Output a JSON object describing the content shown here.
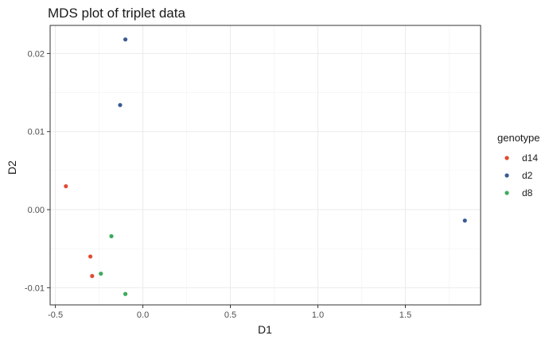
{
  "chart_data": {
    "type": "scatter",
    "title": "MDS plot of triplet data",
    "xlabel": "D1",
    "ylabel": "D2",
    "xlim": [
      -0.53,
      1.93
    ],
    "ylim": [
      -0.0122,
      0.0236
    ],
    "x_ticks": [
      -0.5,
      0.0,
      0.5,
      1.0,
      1.5
    ],
    "x_tick_labels": [
      "-0.5",
      "0.0",
      "0.5",
      "1.0",
      "1.5"
    ],
    "y_ticks": [
      -0.01,
      0.0,
      0.01,
      0.02
    ],
    "y_tick_labels": [
      "-0.01",
      "0.00",
      "0.01",
      "0.02"
    ],
    "grid": true,
    "legend": {
      "title": "genotype",
      "position": "right"
    },
    "series": [
      {
        "name": "d14",
        "color": "#e24a33",
        "points": [
          {
            "x": -0.44,
            "y": 0.003
          },
          {
            "x": -0.3,
            "y": -0.006
          },
          {
            "x": -0.29,
            "y": -0.0085
          }
        ]
      },
      {
        "name": "d2",
        "color": "#3a5a92",
        "points": [
          {
            "x": -0.1,
            "y": 0.0218
          },
          {
            "x": -0.13,
            "y": 0.0134
          },
          {
            "x": 1.84,
            "y": -0.0014
          }
        ]
      },
      {
        "name": "d8",
        "color": "#3dab5a",
        "points": [
          {
            "x": -0.18,
            "y": -0.0034
          },
          {
            "x": -0.24,
            "y": -0.0082
          },
          {
            "x": -0.1,
            "y": -0.0108
          }
        ]
      }
    ]
  }
}
